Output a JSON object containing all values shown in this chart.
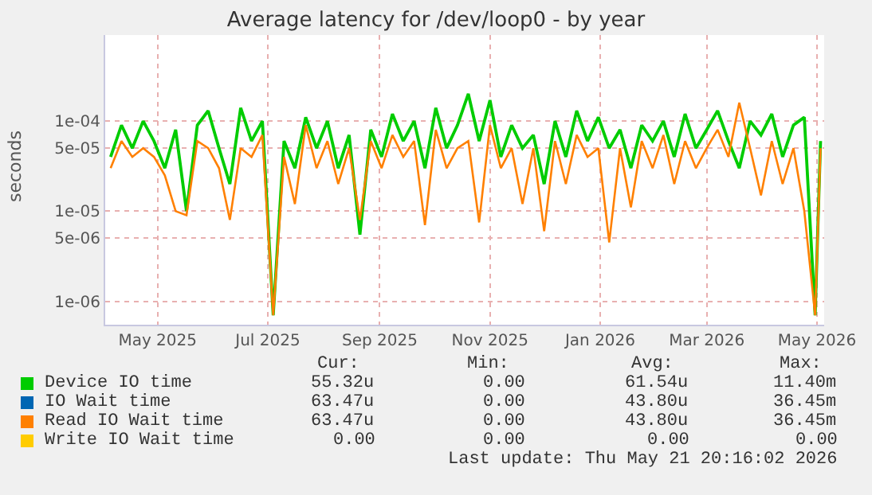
{
  "chart_data": {
    "type": "line",
    "title": "Average latency for /dev/loop0 - by year",
    "ylabel": "seconds",
    "x": [
      "2025-04-05",
      "2025-04-11",
      "2025-04-17",
      "2025-04-23",
      "2025-04-29",
      "2025-05-05",
      "2025-05-11",
      "2025-05-17",
      "2025-05-23",
      "2025-05-29",
      "2025-06-04",
      "2025-06-10",
      "2025-06-16",
      "2025-06-22",
      "2025-06-28",
      "2025-07-04",
      "2025-07-10",
      "2025-07-16",
      "2025-07-22",
      "2025-07-28",
      "2025-08-03",
      "2025-08-09",
      "2025-08-15",
      "2025-08-21",
      "2025-08-27",
      "2025-09-02",
      "2025-09-08",
      "2025-09-14",
      "2025-09-20",
      "2025-09-26",
      "2025-10-02",
      "2025-10-08",
      "2025-10-14",
      "2025-10-20",
      "2025-10-26",
      "2025-11-01",
      "2025-11-07",
      "2025-11-13",
      "2025-11-19",
      "2025-11-25",
      "2025-12-01",
      "2025-12-07",
      "2025-12-13",
      "2025-12-19",
      "2025-12-25",
      "2025-12-31",
      "2026-01-06",
      "2026-01-12",
      "2026-01-18",
      "2026-01-24",
      "2026-01-30",
      "2026-02-05",
      "2026-02-11",
      "2026-02-17",
      "2026-02-23",
      "2026-03-01",
      "2026-03-07",
      "2026-03-13",
      "2026-03-19",
      "2026-03-25",
      "2026-03-31",
      "2026-04-06",
      "2026-04-12",
      "2026-04-18",
      "2026-04-24",
      "2026-04-30",
      "2026-05-03"
    ],
    "series": [
      {
        "name": "Device IO time",
        "color": "#00cc00",
        "values": [
          4e-05,
          9e-05,
          5e-05,
          0.0001,
          6e-05,
          3e-05,
          8e-05,
          1e-05,
          9e-05,
          0.00013,
          5e-05,
          2e-05,
          0.00014,
          6e-05,
          0.0001,
          7e-07,
          6e-05,
          3e-05,
          0.00011,
          5e-05,
          0.0001,
          3e-05,
          7e-05,
          5.5e-06,
          8e-05,
          4e-05,
          0.00012,
          6e-05,
          0.0001,
          3e-05,
          0.00014,
          5e-05,
          9e-05,
          0.0002,
          6e-05,
          0.00017,
          4e-05,
          9e-05,
          5e-05,
          7e-05,
          2e-05,
          0.0001,
          4e-05,
          0.00013,
          6e-05,
          0.00011,
          5e-05,
          8e-05,
          3e-05,
          9e-05,
          6e-05,
          0.0001,
          4e-05,
          0.00012,
          5e-05,
          8e-05,
          0.00013,
          6e-05,
          3e-05,
          0.0001,
          7e-05,
          0.00012,
          4e-05,
          9e-05,
          0.00011,
          7e-07,
          6e-05
        ]
      },
      {
        "name": "IO Wait time",
        "color": "#0066b3",
        "values": [
          null,
          null,
          null,
          null,
          null,
          null,
          null,
          null,
          null,
          null,
          null,
          null,
          null,
          null,
          null,
          null,
          null,
          null,
          null,
          null,
          null,
          null,
          null,
          null,
          null,
          null,
          null,
          null,
          null,
          null,
          null,
          null,
          null,
          null,
          null,
          null,
          null,
          null,
          null,
          null,
          null,
          null,
          null,
          null,
          null,
          null,
          null,
          null,
          null,
          null,
          null,
          null,
          null,
          null,
          null,
          null,
          null,
          null,
          null,
          null,
          null,
          null,
          null,
          null,
          null,
          null,
          null
        ]
      },
      {
        "name": "Read IO Wait time",
        "color": "#ff8000",
        "values": [
          3e-05,
          6e-05,
          4e-05,
          5e-05,
          4e-05,
          2.5e-05,
          1e-05,
          9e-06,
          6e-05,
          5e-05,
          3e-05,
          8e-06,
          5e-05,
          4e-05,
          7e-05,
          7e-07,
          4e-05,
          1.2e-05,
          9e-05,
          3e-05,
          6e-05,
          2e-05,
          5e-05,
          8e-06,
          6e-05,
          3e-05,
          7e-05,
          4e-05,
          6e-05,
          7e-06,
          8e-05,
          3e-05,
          5e-05,
          6e-05,
          7.5e-06,
          9e-05,
          3e-05,
          5e-05,
          1.2e-05,
          5e-05,
          6e-06,
          6e-05,
          2e-05,
          7e-05,
          4e-05,
          5e-05,
          4.5e-06,
          5e-05,
          1.1e-05,
          6e-05,
          3e-05,
          7e-05,
          2e-05,
          6e-05,
          3e-05,
          5e-05,
          8e-05,
          4e-05,
          0.00016,
          5e-05,
          1.5e-05,
          6e-05,
          2e-05,
          5e-05,
          1e-05,
          7e-07,
          5e-05
        ]
      },
      {
        "name": "Write IO Wait time",
        "color": "#ffcc00",
        "values": [
          null,
          null,
          null,
          null,
          null,
          null,
          null,
          null,
          null,
          null,
          null,
          null,
          null,
          null,
          null,
          null,
          null,
          null,
          null,
          null,
          null,
          null,
          null,
          null,
          null,
          null,
          null,
          null,
          null,
          null,
          null,
          null,
          null,
          null,
          null,
          null,
          null,
          null,
          null,
          null,
          null,
          null,
          null,
          null,
          null,
          null,
          null,
          null,
          null,
          null,
          null,
          null,
          null,
          null,
          null,
          null,
          null,
          null,
          null,
          null,
          null,
          null,
          null,
          null,
          null,
          null,
          null
        ]
      }
    ],
    "log": true,
    "xlim": [
      "2025-04-02",
      "2026-05-05"
    ],
    "xticks": [
      {
        "value": "2025-05-01",
        "label": "May 2025"
      },
      {
        "value": "2025-07-01",
        "label": "Jul 2025"
      },
      {
        "value": "2025-09-01",
        "label": "Sep 2025"
      },
      {
        "value": "2025-11-01",
        "label": "Nov 2025"
      },
      {
        "value": "2026-01-01",
        "label": "Jan 2026"
      },
      {
        "value": "2026-03-01",
        "label": "Mar 2026"
      },
      {
        "value": "2026-05-01",
        "label": "May 2026"
      }
    ],
    "ylim": [
      5.5e-07,
      0.0009
    ],
    "yticks": [
      {
        "value": 1e-06,
        "label": "1e-06"
      },
      {
        "value": 5e-06,
        "label": "5e-06"
      },
      {
        "value": 1e-05,
        "label": "1e-05"
      },
      {
        "value": 5e-05,
        "label": "5e-05"
      },
      {
        "value": 0.0001,
        "label": "1e-04"
      }
    ],
    "grid": true,
    "legend": "bottom",
    "marker": "none",
    "line_style": "solid",
    "annotations": [
      "Cur:",
      "Min:",
      "Avg:",
      "Max:",
      "55.32u",
      "0.00",
      "61.54u",
      "11.40m",
      "63.47u",
      "0.00",
      "43.80u",
      "36.45m",
      "63.47u",
      "0.00",
      "43.80u",
      "36.45m",
      "0.00",
      "0.00",
      "0.00",
      "0.00",
      "Last update: Thu May 21 20:16:02 2026"
    ]
  }
}
